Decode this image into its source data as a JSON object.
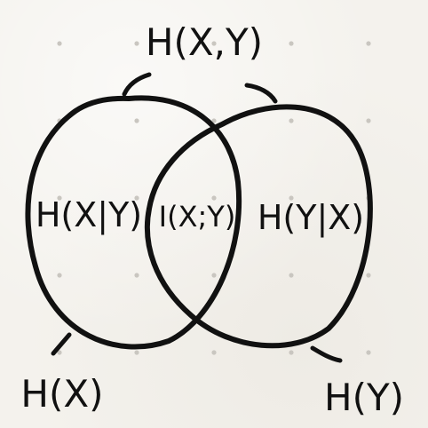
{
  "labels": {
    "joint": "H(X,Y)",
    "h_x": "H(X)",
    "h_y": "H(Y)",
    "cond_x_given_y": "H(X|Y)",
    "mutual": "I(X;Y)",
    "cond_y_given_x": "H(Y|X)"
  },
  "colors": {
    "ink": "#111111",
    "paper": "#f4f2ed",
    "grid_dot": "#c9c6c0"
  }
}
